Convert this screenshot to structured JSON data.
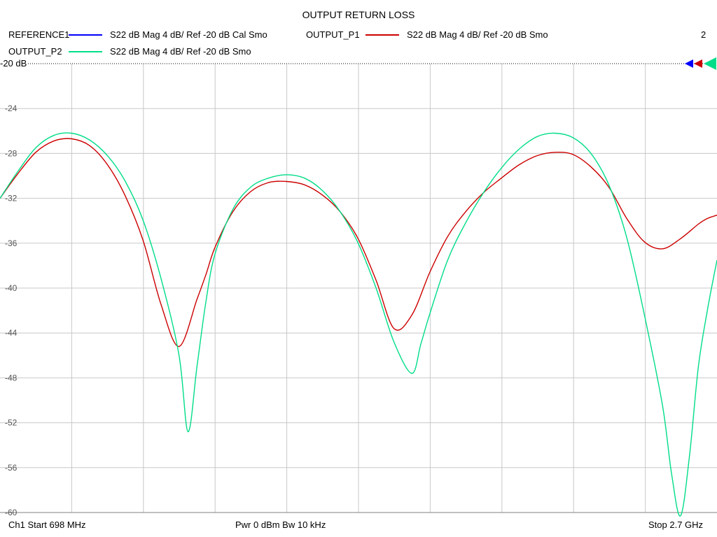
{
  "chart_data": {
    "type": "line",
    "title": "OUTPUT RETURN LOSS",
    "x_start": "698 MHz",
    "x_stop": "2.7 GHz",
    "x_range_mhz": [
      698,
      2700
    ],
    "ylim": [
      -60,
      -20
    ],
    "y_ref_label": "-20 dB",
    "y_ticks": [
      "-24",
      "-28",
      "-32",
      "-36",
      "-40",
      "-44",
      "-48",
      "-52",
      "-56",
      "-60"
    ],
    "grid": true,
    "legend_position": "top",
    "legend_entries": [
      {
        "name": "REFERENCE1",
        "color": "#0000ff",
        "desc": "S22  dB Mag  4 dB/ Ref -20 dB  Cal Smo"
      },
      {
        "name": "OUTPUT_P1",
        "color": "#cc0000",
        "desc": "S22  dB Mag  4 dB/ Ref -20 dB  Smo"
      },
      {
        "name": "OUTPUT_P2",
        "color": "#00dd88",
        "desc": "S22  dB Mag  4 dB/ Ref -20 dB  Smo"
      }
    ],
    "channel_count": "2",
    "series": [
      {
        "name": "OUTPUT_P1",
        "color": "#cc0000",
        "x": [
          698,
          748,
          798,
          848,
          898,
          948,
          998,
          1048,
          1098,
          1148,
          1198,
          1248,
          1273,
          1298,
          1348,
          1398,
          1448,
          1498,
          1548,
          1598,
          1648,
          1698,
          1748,
          1798,
          1848,
          1898,
          1948,
          1998,
          2048,
          2098,
          2148,
          2198,
          2248,
          2298,
          2348,
          2398,
          2448,
          2498,
          2548,
          2598,
          2648,
          2673,
          2700
        ],
        "values": [
          -32.0,
          -29.8,
          -27.9,
          -26.9,
          -26.7,
          -27.3,
          -29.0,
          -31.8,
          -35.8,
          -41.5,
          -45.2,
          -41.0,
          -38.8,
          -36.4,
          -33.2,
          -31.4,
          -30.6,
          -30.5,
          -30.8,
          -31.7,
          -33.2,
          -35.6,
          -39.3,
          -43.6,
          -42.4,
          -38.6,
          -35.4,
          -33.2,
          -31.5,
          -30.2,
          -29.0,
          -28.2,
          -27.9,
          -28.1,
          -29.2,
          -31.0,
          -33.8,
          -35.9,
          -36.5,
          -35.6,
          -34.3,
          -33.8,
          -33.5
        ]
      },
      {
        "name": "OUTPUT_P2",
        "color": "#00dd88",
        "x": [
          698,
          748,
          798,
          848,
          898,
          948,
          998,
          1048,
          1098,
          1148,
          1198,
          1223,
          1248,
          1273,
          1298,
          1348,
          1398,
          1448,
          1498,
          1548,
          1598,
          1648,
          1698,
          1748,
          1798,
          1848,
          1873,
          1898,
          1948,
          1998,
          2048,
          2098,
          2148,
          2198,
          2248,
          2298,
          2348,
          2398,
          2448,
          2498,
          2548,
          2573,
          2598,
          2623,
          2648,
          2673,
          2700
        ],
        "values": [
          -32.0,
          -29.6,
          -27.5,
          -26.4,
          -26.2,
          -26.8,
          -28.2,
          -30.5,
          -34.0,
          -39.2,
          -46.0,
          -52.8,
          -47.0,
          -41.2,
          -37.0,
          -33.0,
          -31.0,
          -30.2,
          -29.9,
          -30.2,
          -31.3,
          -33.2,
          -36.0,
          -40.0,
          -44.8,
          -47.6,
          -45.0,
          -42.3,
          -37.5,
          -34.2,
          -31.5,
          -29.3,
          -27.6,
          -26.5,
          -26.2,
          -26.6,
          -28.0,
          -30.8,
          -35.5,
          -42.5,
          -50.5,
          -56.5,
          -60.3,
          -55.0,
          -47.0,
          -42.0,
          -37.5
        ]
      }
    ]
  },
  "footer": {
    "start": "Ch1  Start  698 MHz",
    "power": "Pwr  0 dBm  Bw  10 kHz",
    "stop": "Stop  2.7 GHz"
  }
}
